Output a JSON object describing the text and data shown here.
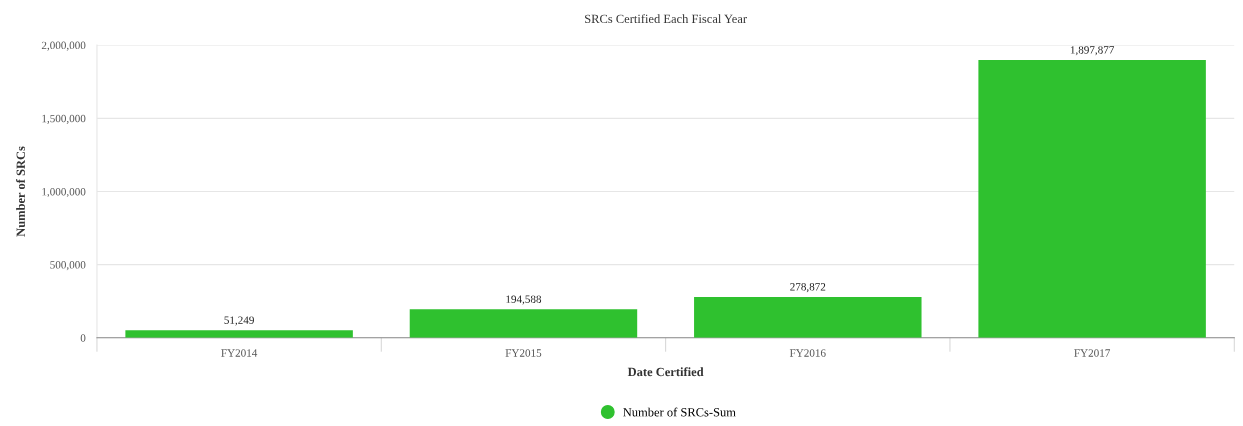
{
  "chart_data": {
    "type": "bar",
    "title": "SRCs Certified Each Fiscal Year",
    "xlabel": "Date Certified",
    "ylabel": "Number of SRCs",
    "categories": [
      "FY2014",
      "FY2015",
      "FY2016",
      "FY2017"
    ],
    "series": [
      {
        "name": "Number of SRCs-Sum",
        "color": "#2fc12f",
        "values": [
          51249,
          194588,
          278872,
          1897877
        ],
        "value_labels": [
          "51,249",
          "194,588",
          "278,872",
          "1,897,877"
        ]
      }
    ],
    "ylim": [
      0,
      2000000
    ],
    "yticks": [
      {
        "value": 0,
        "label": "0"
      },
      {
        "value": 500000,
        "label": "500,000"
      },
      {
        "value": 1000000,
        "label": "1,000,000"
      },
      {
        "value": 1500000,
        "label": "1,500,000"
      },
      {
        "value": 2000000,
        "label": "2,000,000"
      }
    ],
    "grid": "y",
    "legend": "bottom"
  }
}
